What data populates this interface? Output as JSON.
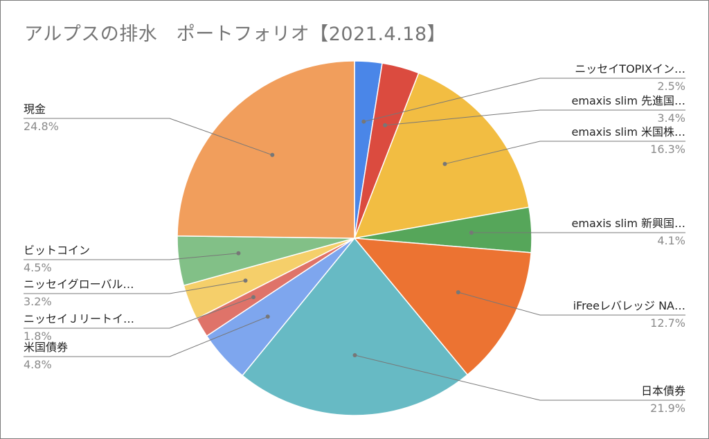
{
  "chart_data": {
    "type": "pie",
    "title": "アルプスの排水　ポートフォリオ【2021.4.18】",
    "start_angle_deg": 0,
    "direction": "clockwise",
    "slices": [
      {
        "label": "ニッセイTOPIXイン…",
        "pct_label": "2.5%",
        "value": 2.5,
        "color": "#4a86e8"
      },
      {
        "label": "emaxis slim 先進国…",
        "pct_label": "3.4%",
        "value": 3.4,
        "color": "#db4b3f"
      },
      {
        "label": "emaxis slim 米国株…",
        "pct_label": "16.3%",
        "value": 16.3,
        "color": "#f2bd42"
      },
      {
        "label": "emaxis slim 新興国…",
        "pct_label": "4.1%",
        "value": 4.1,
        "color": "#56a65a"
      },
      {
        "label": "iFreeレバレッジ NA…",
        "pct_label": "12.7%",
        "value": 12.7,
        "color": "#ec7332"
      },
      {
        "label": "日本債券",
        "pct_label": "21.9%",
        "value": 21.9,
        "color": "#67bac4"
      },
      {
        "label": "米国債券",
        "pct_label": "4.8%",
        "value": 4.8,
        "color": "#7ea6ee"
      },
      {
        "label": "ニッセイＪリートイ…",
        "pct_label": "1.8%",
        "value": 1.8,
        "color": "#df7369"
      },
      {
        "label": "ニッセイグローバル…",
        "pct_label": "3.2%",
        "value": 3.2,
        "color": "#f5cf6a"
      },
      {
        "label": "ビットコイン",
        "pct_label": "4.5%",
        "value": 4.5,
        "color": "#82c087"
      },
      {
        "label": "現金",
        "pct_label": "24.8%",
        "value": 24.8,
        "color": "#f19e5c"
      }
    ]
  }
}
